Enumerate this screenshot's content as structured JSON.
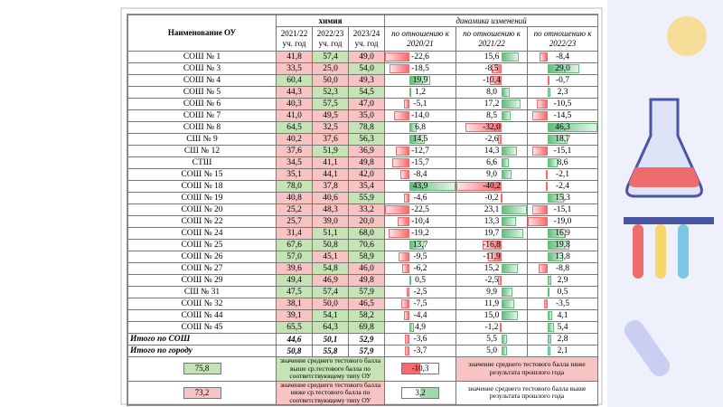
{
  "header": {
    "name": "Наименование ОУ",
    "subject": "химия",
    "dynamics": "динамика изменений",
    "years": [
      {
        "year": "2021/22",
        "unit": "уч. год"
      },
      {
        "year": "2022/23",
        "unit": "уч. год"
      },
      {
        "year": "2023/24",
        "unit": "уч. год"
      }
    ],
    "compare": [
      {
        "text": "по отношению к",
        "year": "2020/21"
      },
      {
        "text": "по отношению к",
        "year": "2021/22"
      },
      {
        "text": "по отношению к",
        "year": "2022/23"
      }
    ]
  },
  "table": {
    "rows": [
      [
        "СОШ № 1",
        "41,8",
        "57,4",
        "49,0",
        "-22,6",
        "15,6",
        "-8,4"
      ],
      [
        "СОШ № 3",
        "33,5",
        "25,0",
        "54,0",
        "-18,5",
        "-8,5",
        "29,0"
      ],
      [
        "СОШ № 4",
        "60,4",
        "50,0",
        "49,3",
        "19,9",
        "-10,4",
        "-0,7"
      ],
      [
        "СОШ № 5",
        "44,3",
        "52,3",
        "54,5",
        "1,2",
        "8,0",
        "2,3"
      ],
      [
        "СОШ № 6",
        "40,3",
        "57,5",
        "47,0",
        "-5,1",
        "17,2",
        "-10,5"
      ],
      [
        "СОШ № 7",
        "41,0",
        "49,5",
        "35,0",
        "-14,0",
        "8,5",
        "-14,5"
      ],
      [
        "СОШ № 8",
        "64,5",
        "32,5",
        "78,8",
        "6,8",
        "-32,0",
        "46,3"
      ],
      [
        "СШ № 9",
        "40,2",
        "37,6",
        "56,3",
        "14,5",
        "-2,6",
        "18,7"
      ],
      [
        "СШ № 12",
        "37,6",
        "51,9",
        "36,9",
        "-12,7",
        "14,3",
        "-15,1"
      ],
      [
        "СТШ",
        "34,5",
        "41,1",
        "49,8",
        "-15,7",
        "6,6",
        "8,6"
      ],
      [
        "СОШ № 15",
        "35,1",
        "44,1",
        "42,0",
        "-8,4",
        "9,0",
        "-2,1"
      ],
      [
        "СОШ № 18",
        "78,0",
        "37,8",
        "35,4",
        "43,9",
        "-40,2",
        "-2,4"
      ],
      [
        "СОШ № 19",
        "40,8",
        "40,6",
        "55,9",
        "-4,6",
        "-0,2",
        "15,3"
      ],
      [
        "СОШ № 20",
        "25,2",
        "48,3",
        "33,2",
        "-22,5",
        "23,1",
        "-15,1"
      ],
      [
        "СОШ № 22",
        "25,7",
        "39,0",
        "20,0",
        "-10,4",
        "13,3",
        "-19,0"
      ],
      [
        "СОШ № 24",
        "31,4",
        "51,1",
        "68,0",
        "-19,2",
        "19,7",
        "16,9"
      ],
      [
        "СОШ № 25",
        "67,6",
        "50,8",
        "70,6",
        "13,7",
        "-16,8",
        "19,8"
      ],
      [
        "СОШ № 26",
        "57,0",
        "45,1",
        "58,9",
        "-9,5",
        "-11,9",
        "13,8"
      ],
      [
        "СОШ № 27",
        "39,6",
        "54,8",
        "46,0",
        "-6,2",
        "15,2",
        "-8,8"
      ],
      [
        "СОШ № 29",
        "49,4",
        "46,9",
        "49,8",
        "0,5",
        "-2,5",
        "2,9"
      ],
      [
        "СШ № 31",
        "47,5",
        "57,4",
        "57,9",
        "-2,5",
        "9,9",
        "0,5"
      ],
      [
        "СОШ № 32",
        "38,1",
        "50,0",
        "46,5",
        "-7,5",
        "11,9",
        "-3,5"
      ],
      [
        "СОШ № 44",
        "39,1",
        "54,1",
        "58,2",
        "-4,4",
        "15,0",
        "4,1"
      ],
      [
        "СОШ № 45",
        "65,5",
        "64,3",
        "69,8",
        "4,9",
        "-1,2",
        "5,4"
      ],
      [
        "Итого по СОШ",
        "44,6",
        "50,1",
        "52,9",
        "-3,6",
        "5,5",
        "2,8"
      ],
      [
        "Итого по городу",
        "50,8",
        "55,8",
        "57,9",
        "-3,7",
        "5,0",
        "2,1"
      ]
    ]
  },
  "legend": [
    {
      "sample": "75,8",
      "text": "значение среднего тестового балла выше ср.тестового балла по соответствующему типу ОУ"
    },
    {
      "sample": "73,2",
      "text": "значение среднего тестового балла ниже ср.тестового балла по соответствующему типу ОУ"
    },
    {
      "sample": "-10,3",
      "text": "значение среднего тестового балла ниже результата прошлого года"
    },
    {
      "sample": "3,2",
      "text": "значение среднего тестового балла выше результата прошлого года"
    }
  ]
}
